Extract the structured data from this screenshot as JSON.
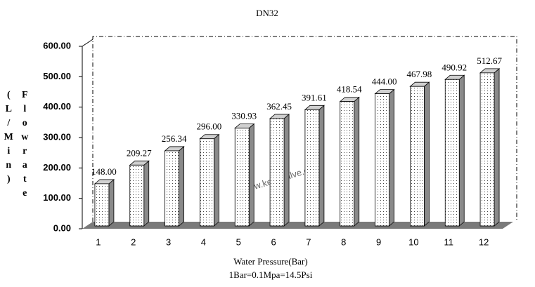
{
  "chart_data": {
    "type": "bar3d",
    "title": "DN32",
    "y_label": "Flowrate",
    "y_unit": "(L/Min)",
    "x_label": "Water Pressure(Bar)",
    "note": "1Bar=0.1Mpa=14.5Psi",
    "watermark": "www.keyuvalve.com",
    "categories": [
      "1",
      "2",
      "3",
      "4",
      "5",
      "6",
      "7",
      "8",
      "9",
      "10",
      "11",
      "12"
    ],
    "values": [
      148,
      209.27,
      256.34,
      296,
      330.93,
      362.45,
      391.61,
      418.54,
      444,
      467.98,
      490.92,
      512.67
    ],
    "value_labels": [
      "148.00",
      "209.27",
      "256.34",
      "296.00",
      "330.93",
      "362.45",
      "391.61",
      "418.54",
      "444.00",
      "467.98",
      "490.92",
      "512.67"
    ],
    "ylim": [
      0,
      600
    ],
    "yticks": [
      {
        "value": 0,
        "label": "0.00"
      },
      {
        "value": 100,
        "label": "100.00"
      },
      {
        "value": 200,
        "label": "200.00"
      },
      {
        "value": 300,
        "label": "300.00"
      },
      {
        "value": 400,
        "label": "400.00"
      },
      {
        "value": 500,
        "label": "500.00"
      },
      {
        "value": 600,
        "label": "600.00"
      }
    ],
    "colors": {
      "front": "#ffffff",
      "side": "#8a8a8a",
      "top": "#d0d0d0",
      "floor": "#7a7a7a"
    }
  }
}
